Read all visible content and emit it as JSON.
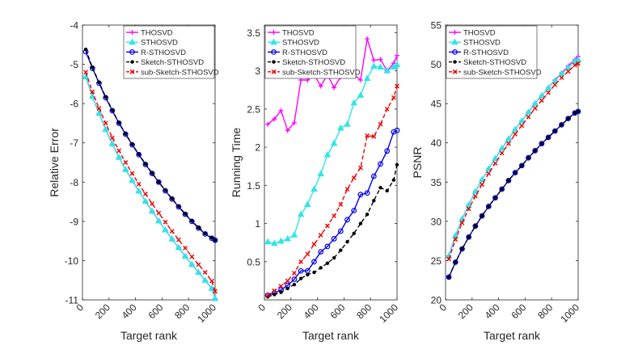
{
  "chart_data": [
    {
      "type": "line",
      "xlabel": "Target rank",
      "ylabel": "Relative Error",
      "xlim": [
        0,
        1000
      ],
      "ylim": [
        -11,
        -4
      ],
      "xticks": [
        0,
        200,
        400,
        600,
        800,
        1000
      ],
      "yticks": [
        -11,
        -10,
        -9,
        -8,
        -7,
        -6,
        -5,
        -4
      ],
      "x": [
        25,
        75,
        125,
        175,
        225,
        275,
        325,
        375,
        425,
        475,
        525,
        575,
        625,
        675,
        725,
        775,
        825,
        875,
        925,
        975,
        1000
      ],
      "series": [
        {
          "name": "THOSVD",
          "values": [
            -5.32,
            -5.82,
            -6.25,
            -6.66,
            -7.03,
            -7.37,
            -7.68,
            -7.96,
            -8.23,
            -8.49,
            -8.74,
            -8.99,
            -9.22,
            -9.45,
            -9.67,
            -9.89,
            -10.1,
            -10.3,
            -10.5,
            -10.71,
            -10.97
          ]
        },
        {
          "name": "STHOSVD",
          "values": [
            -5.32,
            -5.82,
            -6.25,
            -6.66,
            -7.03,
            -7.37,
            -7.68,
            -7.96,
            -8.23,
            -8.49,
            -8.74,
            -8.99,
            -9.22,
            -9.45,
            -9.67,
            -9.89,
            -10.1,
            -10.3,
            -10.5,
            -10.71,
            -10.97
          ]
        },
        {
          "name": "R-STHOSVD",
          "values": [
            -4.68,
            -5.1,
            -5.48,
            -5.85,
            -6.18,
            -6.5,
            -6.78,
            -7.05,
            -7.3,
            -7.55,
            -7.78,
            -8.0,
            -8.22,
            -8.43,
            -8.63,
            -8.82,
            -9.0,
            -9.17,
            -9.32,
            -9.43,
            -9.48
          ]
        },
        {
          "name": "Sketch-STHOSVD",
          "values": [
            -4.62,
            -5.08,
            -5.46,
            -5.83,
            -6.17,
            -6.49,
            -6.77,
            -7.04,
            -7.29,
            -7.54,
            -7.77,
            -8.0,
            -8.21,
            -8.42,
            -8.62,
            -8.81,
            -8.99,
            -9.16,
            -9.31,
            -9.42,
            -9.48
          ]
        },
        {
          "name": "sub-Sketch-STHOSVD",
          "values": [
            -5.2,
            -5.7,
            -6.12,
            -6.5,
            -6.87,
            -7.2,
            -7.5,
            -7.78,
            -8.05,
            -8.3,
            -8.55,
            -8.79,
            -9.02,
            -9.25,
            -9.47,
            -9.68,
            -9.9,
            -10.1,
            -10.3,
            -10.52,
            -10.78
          ]
        }
      ],
      "legend": "top-right"
    },
    {
      "type": "line",
      "xlabel": "Target rank",
      "ylabel": "Running Time",
      "xlim": [
        0,
        1000
      ],
      "ylim": [
        0,
        3.6
      ],
      "xticks": [
        0,
        200,
        400,
        600,
        800,
        1000
      ],
      "yticks": [
        0.5,
        1,
        1.5,
        2,
        2.5,
        3,
        3.5
      ],
      "x": [
        25,
        75,
        125,
        175,
        225,
        275,
        325,
        375,
        425,
        475,
        525,
        575,
        625,
        675,
        725,
        775,
        825,
        875,
        925,
        975,
        1000
      ],
      "series": [
        {
          "name": "THOSVD",
          "values": [
            2.3,
            2.37,
            2.48,
            2.22,
            2.32,
            2.88,
            2.88,
            2.95,
            2.8,
            2.95,
            2.78,
            2.92,
            2.94,
            2.95,
            2.88,
            3.42,
            3.14,
            3.15,
            3.0,
            3.1,
            3.2
          ]
        },
        {
          "name": "STHOSVD",
          "values": [
            0.76,
            0.74,
            0.77,
            0.8,
            0.85,
            1.12,
            1.25,
            1.45,
            1.65,
            1.9,
            2.05,
            2.25,
            2.3,
            2.58,
            2.68,
            2.9,
            3.06,
            3.05,
            3.0,
            3.05,
            3.08
          ]
        },
        {
          "name": "R-STHOSVD",
          "values": [
            0.06,
            0.09,
            0.13,
            0.19,
            0.27,
            0.38,
            0.38,
            0.5,
            0.63,
            0.7,
            0.8,
            0.9,
            1.05,
            1.17,
            1.38,
            1.4,
            1.62,
            1.78,
            1.95,
            2.2,
            2.22
          ]
        },
        {
          "name": "Sketch-STHOSVD",
          "values": [
            0.04,
            0.07,
            0.1,
            0.15,
            0.2,
            0.28,
            0.33,
            0.36,
            0.42,
            0.48,
            0.55,
            0.65,
            0.76,
            0.87,
            1.0,
            1.12,
            1.3,
            1.47,
            1.43,
            1.57,
            1.77
          ]
        },
        {
          "name": "sub-Sketch-STHOSVD",
          "values": [
            0.06,
            0.12,
            0.18,
            0.25,
            0.35,
            0.5,
            0.6,
            0.73,
            0.85,
            0.97,
            1.1,
            1.25,
            1.45,
            1.6,
            1.73,
            2.15,
            2.14,
            2.3,
            2.5,
            2.65,
            2.8
          ]
        }
      ],
      "legend": "top-left"
    },
    {
      "type": "line",
      "xlabel": "Target rank",
      "ylabel": "PSNR",
      "xlim": [
        0,
        1000
      ],
      "ylim": [
        20,
        55
      ],
      "xticks": [
        0,
        200,
        400,
        600,
        800,
        1000
      ],
      "yticks": [
        20,
        25,
        30,
        35,
        40,
        45,
        50,
        55
      ],
      "x": [
        25,
        75,
        125,
        175,
        225,
        275,
        325,
        375,
        425,
        475,
        525,
        575,
        625,
        675,
        725,
        775,
        825,
        875,
        925,
        975,
        1000
      ],
      "series": [
        {
          "name": "THOSVD",
          "values": [
            25.6,
            28.2,
            30.3,
            32.1,
            33.8,
            35.3,
            36.7,
            38.0,
            39.3,
            40.5,
            41.7,
            42.8,
            43.9,
            45.0,
            46.0,
            47.0,
            48.0,
            48.9,
            49.8,
            50.6,
            51.0
          ]
        },
        {
          "name": "STHOSVD",
          "values": [
            25.6,
            28.2,
            30.3,
            32.1,
            33.8,
            35.3,
            36.7,
            38.0,
            39.3,
            40.5,
            41.7,
            42.8,
            43.9,
            45.0,
            46.0,
            47.0,
            47.9,
            48.8,
            49.6,
            50.4,
            50.6
          ]
        },
        {
          "name": "R-STHOSVD",
          "values": [
            22.9,
            24.8,
            26.5,
            28.0,
            29.4,
            30.7,
            31.9,
            33.0,
            34.1,
            35.2,
            36.2,
            37.1,
            38.1,
            39.0,
            39.9,
            40.7,
            41.5,
            42.3,
            43.1,
            43.8,
            44.0
          ]
        },
        {
          "name": "Sketch-STHOSVD",
          "values": [
            22.9,
            24.8,
            26.5,
            28.0,
            29.4,
            30.7,
            31.9,
            33.0,
            34.1,
            35.2,
            36.2,
            37.1,
            38.1,
            39.0,
            39.9,
            40.7,
            41.5,
            42.3,
            43.1,
            43.8,
            44.0
          ]
        },
        {
          "name": "sub-Sketch-STHOSVD",
          "values": [
            25.2,
            27.7,
            29.8,
            31.6,
            33.2,
            34.7,
            36.1,
            37.4,
            38.7,
            39.9,
            41.1,
            42.2,
            43.3,
            44.4,
            45.4,
            46.4,
            47.4,
            48.3,
            49.1,
            49.9,
            50.1
          ]
        }
      ],
      "legend": "top-left"
    }
  ],
  "series_styles": [
    {
      "name": "THOSVD",
      "color": "#ff00ff",
      "dash": "solid",
      "marker": "plus"
    },
    {
      "name": "STHOSVD",
      "color": "#2ee6e6",
      "dash": "solid",
      "marker": "triangle"
    },
    {
      "name": "R-STHOSVD",
      "color": "#0000ee",
      "dash": "solid",
      "marker": "circle"
    },
    {
      "name": "Sketch-STHOSVD",
      "color": "#000000",
      "dash": "dashed",
      "marker": "dot"
    },
    {
      "name": "sub-Sketch-STHOSVD",
      "color": "#ee0000",
      "dash": "dashed",
      "marker": "x"
    }
  ]
}
